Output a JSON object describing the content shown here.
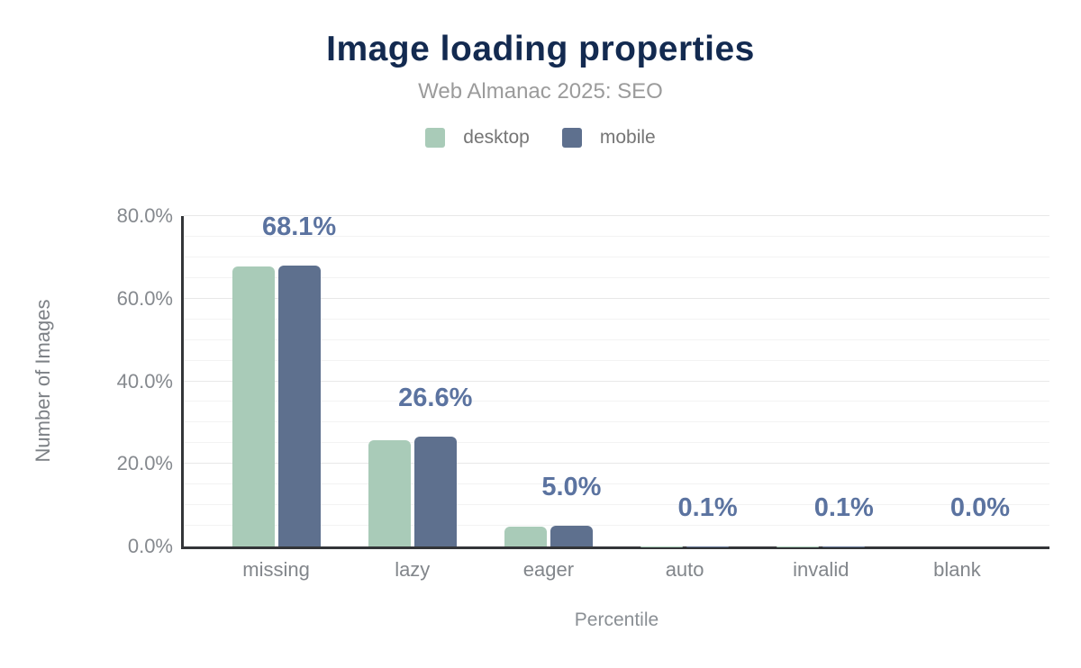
{
  "chart_data": {
    "type": "bar",
    "title": "Image loading properties",
    "subtitle": "Web Almanac 2025: SEO",
    "xlabel": "Percentile",
    "ylabel": "Number of Images",
    "categories": [
      "missing",
      "lazy",
      "eager",
      "auto",
      "invalid",
      "blank"
    ],
    "series": [
      {
        "name": "desktop",
        "color": "#a9cbb8",
        "values": [
          67.9,
          25.8,
          4.9,
          0.1,
          0.1,
          0.0
        ]
      },
      {
        "name": "mobile",
        "color": "#5e708e",
        "values": [
          68.1,
          26.6,
          5.0,
          0.1,
          0.1,
          0.0
        ]
      }
    ],
    "data_labels": [
      "68.1%",
      "26.6%",
      "5.0%",
      "0.1%",
      "0.1%",
      "0.0%"
    ],
    "y_ticks": [
      {
        "label": "80.0%",
        "value": 80
      },
      {
        "label": "60.0%",
        "value": 60
      },
      {
        "label": "40.0%",
        "value": 40
      },
      {
        "label": "20.0%",
        "value": 20
      },
      {
        "label": "0.0%",
        "value": 0
      }
    ],
    "ylim": [
      0,
      80
    ],
    "grid": {
      "on": true,
      "minor_step": 5,
      "major_step": 20
    },
    "legend_position": "top-center"
  },
  "colors": {
    "background": "#ffffff",
    "title": "#132a50",
    "subtitle": "#9b9b9b",
    "legend_text": "#757575",
    "axis_line": "#333538",
    "tick_label": "#85898e",
    "category_label": "#82868b",
    "axis_title": "#7d8186",
    "data_label": "#5b73a0",
    "grid_minor": "#f3f3f3",
    "grid_major": "#e8e8e8"
  }
}
